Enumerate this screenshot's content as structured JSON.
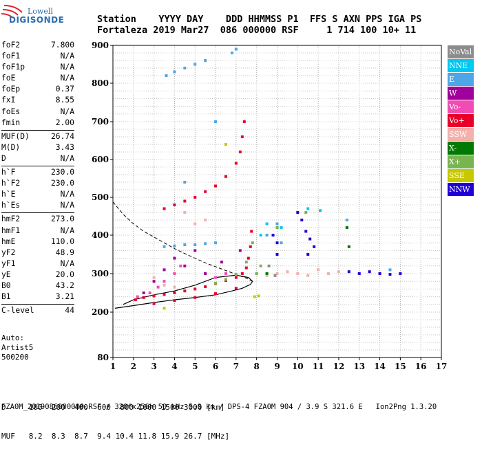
{
  "logo": {
    "line1": "Lowell",
    "line2": "DIGISONDE"
  },
  "header": {
    "row1": "Station    YYYY DAY    DDD HHMMSS P1  FFS S AXN PPS IGA PS",
    "row2": "Fortaleza 2019 Mar27  086 000000 RSF     1 714 100 10+ 11"
  },
  "params": {
    "group1": [
      {
        "label": "foF2",
        "value": "7.800"
      },
      {
        "label": "foF1",
        "value": "N/A"
      },
      {
        "label": "foF1p",
        "value": "N/A"
      },
      {
        "label": "foE",
        "value": "N/A"
      },
      {
        "label": "foEp",
        "value": "0.37"
      },
      {
        "label": "fxI",
        "value": "8.55"
      },
      {
        "label": "foEs",
        "value": "N/A"
      },
      {
        "label": "fmin",
        "value": "2.00"
      }
    ],
    "group2": [
      {
        "label": "MUF(D)",
        "value": "26.74"
      },
      {
        "label": "M(D)",
        "value": "3.43"
      },
      {
        "label": "D",
        "value": "N/A"
      }
    ],
    "group3": [
      {
        "label": "h`F",
        "value": "230.0"
      },
      {
        "label": "h`F2",
        "value": "230.0"
      },
      {
        "label": "h`E",
        "value": "N/A"
      },
      {
        "label": "h`Es",
        "value": "N/A"
      }
    ],
    "group4": [
      {
        "label": "hmF2",
        "value": "273.0"
      },
      {
        "label": "hmF1",
        "value": "N/A"
      },
      {
        "label": "hmE",
        "value": "110.0"
      },
      {
        "label": "yF2",
        "value": "48.9"
      },
      {
        "label": "yF1",
        "value": "N/A"
      },
      {
        "label": "yE",
        "value": "20.0"
      },
      {
        "label": "B0",
        "value": "43.2"
      },
      {
        "label": "B1",
        "value": "3.21"
      }
    ],
    "group5": [
      {
        "label": "C-level",
        "value": "44"
      }
    ]
  },
  "auto": {
    "line1": "Auto:",
    "line2": "Artist5",
    "line3": "500200"
  },
  "legend": [
    {
      "label": "NoVal",
      "color": "#8c8c8c"
    },
    {
      "label": "NNE",
      "color": "#00c8f0"
    },
    {
      "label": "E",
      "color": "#4ea6e6"
    },
    {
      "label": "W",
      "color": "#a0009c"
    },
    {
      "label": "Vo-",
      "color": "#f04cb4"
    },
    {
      "label": "Vo+",
      "color": "#e8002a"
    },
    {
      "label": "SSW",
      "color": "#f4b0ac"
    },
    {
      "label": "X-",
      "color": "#007a00"
    },
    {
      "label": "X+",
      "color": "#78b450"
    },
    {
      "label": "SSE",
      "color": "#c8c800"
    },
    {
      "label": "NNW",
      "color": "#2000d8"
    }
  ],
  "dtable": {
    "row1": "D     100  200  400  600  800 1000 1500 3000 [km]",
    "row2": "MUF   8.2  8.3  8.7  9.4 10.4 11.8 15.9 26.7 [MHz]"
  },
  "footer": "FZA0M_2019086000000.RSF / 320fx256h 50 kHz 5.0 km / DPS-4 FZA0M 904 / 3.9 S 321.6 E   Ion2Png 1.3.20",
  "chart_data": {
    "type": "scatter",
    "xlim": [
      1,
      17
    ],
    "ylim": [
      80,
      900
    ],
    "x_ticks": [
      "1",
      "2",
      "3",
      "4",
      "5",
      "6",
      "7",
      "8",
      "9",
      "10",
      "11",
      "12",
      "13",
      "14",
      "15",
      "16",
      "17"
    ],
    "y_ticks": [
      "80",
      "200",
      "300",
      "400",
      "500",
      "600",
      "700",
      "800",
      "900"
    ],
    "grid": true,
    "series": [
      {
        "name": "Vo+",
        "color": "#e8002a",
        "points": [
          [
            2.1,
            232
          ],
          [
            2.5,
            238
          ],
          [
            3,
            242
          ],
          [
            3.5,
            246
          ],
          [
            4,
            250
          ],
          [
            4.5,
            255
          ],
          [
            5,
            260
          ],
          [
            5.5,
            266
          ],
          [
            6,
            274
          ],
          [
            6.5,
            282
          ],
          [
            7,
            290
          ],
          [
            7.3,
            300
          ],
          [
            7.5,
            315
          ],
          [
            7.6,
            340
          ],
          [
            7.7,
            370
          ],
          [
            7.75,
            410
          ],
          [
            3.5,
            470
          ],
          [
            4,
            480
          ],
          [
            4.5,
            490
          ],
          [
            5,
            500
          ],
          [
            5.5,
            515
          ],
          [
            6,
            530
          ],
          [
            6.5,
            555
          ],
          [
            7,
            590
          ],
          [
            7.2,
            620
          ],
          [
            7.3,
            660
          ],
          [
            7.4,
            700
          ],
          [
            3,
            222
          ],
          [
            4,
            230
          ],
          [
            5,
            238
          ],
          [
            6,
            248
          ],
          [
            7,
            262
          ]
        ]
      },
      {
        "name": "Vo-",
        "color": "#f04cb4",
        "points": [
          [
            2.2,
            240
          ],
          [
            2.8,
            250
          ],
          [
            3.2,
            265
          ],
          [
            3.5,
            280
          ],
          [
            4,
            300
          ],
          [
            4.3,
            320
          ],
          [
            5.5,
            300
          ],
          [
            6,
            290
          ],
          [
            6.5,
            300
          ]
        ]
      },
      {
        "name": "W",
        "color": "#a0009c",
        "points": [
          [
            2.5,
            250
          ],
          [
            3,
            280
          ],
          [
            3.5,
            310
          ],
          [
            4,
            340
          ],
          [
            4.5,
            320
          ],
          [
            5,
            360
          ],
          [
            5.5,
            300
          ],
          [
            6.3,
            330
          ],
          [
            7.2,
            360
          ]
        ]
      },
      {
        "name": "SSW",
        "color": "#f4b0ac",
        "points": [
          [
            3,
            290
          ],
          [
            3.5,
            270
          ],
          [
            4,
            265
          ],
          [
            5,
            430
          ],
          [
            5.5,
            440
          ],
          [
            8,
            300
          ],
          [
            8.5,
            295
          ],
          [
            9,
            300
          ],
          [
            9.5,
            305
          ],
          [
            10,
            300
          ],
          [
            10.5,
            295
          ],
          [
            11,
            310
          ],
          [
            11.5,
            300
          ],
          [
            12,
            305
          ],
          [
            4.5,
            460
          ]
        ]
      },
      {
        "name": "X+",
        "color": "#78b450",
        "points": [
          [
            6,
            275
          ],
          [
            6.5,
            285
          ],
          [
            7,
            298
          ],
          [
            7.5,
            330
          ],
          [
            7.8,
            380
          ],
          [
            8,
            300
          ],
          [
            8.2,
            320
          ],
          [
            9,
            420
          ],
          [
            10.4,
            460
          ]
        ]
      },
      {
        "name": "X-",
        "color": "#007a00",
        "points": [
          [
            8.5,
            300
          ],
          [
            12.5,
            370
          ],
          [
            12.4,
            420
          ]
        ]
      },
      {
        "name": "E",
        "color": "#4ea6e6",
        "points": [
          [
            3.5,
            370
          ],
          [
            4,
            372
          ],
          [
            4.5,
            375
          ],
          [
            5,
            375
          ],
          [
            5.5,
            378
          ],
          [
            6,
            380
          ],
          [
            3.6,
            820
          ],
          [
            4,
            830
          ],
          [
            4.5,
            840
          ],
          [
            5,
            850
          ],
          [
            5.5,
            860
          ],
          [
            6.8,
            880
          ],
          [
            7,
            890
          ],
          [
            6,
            700
          ],
          [
            4.5,
            540
          ],
          [
            8.5,
            400
          ],
          [
            9,
            430
          ],
          [
            9.2,
            380
          ],
          [
            12.4,
            440
          ],
          [
            14.5,
            310
          ]
        ]
      },
      {
        "name": "NNE",
        "color": "#00c8f0",
        "points": [
          [
            8.5,
            430
          ],
          [
            8.2,
            400
          ],
          [
            9.2,
            420
          ],
          [
            10.5,
            470
          ],
          [
            11.1,
            465
          ]
        ]
      },
      {
        "name": "NNW",
        "color": "#2000d8",
        "points": [
          [
            8.8,
            400
          ],
          [
            9,
            380
          ],
          [
            9,
            350
          ],
          [
            10,
            460
          ],
          [
            10.2,
            440
          ],
          [
            10.4,
            410
          ],
          [
            10.6,
            390
          ],
          [
            10.8,
            370
          ],
          [
            10.5,
            350
          ],
          [
            12.5,
            305
          ],
          [
            13,
            300
          ],
          [
            13.5,
            305
          ],
          [
            14,
            300
          ],
          [
            14.5,
            298
          ],
          [
            15,
            300
          ]
        ]
      },
      {
        "name": "SSE",
        "color": "#c8c800",
        "points": [
          [
            7.9,
            240
          ],
          [
            8.1,
            242
          ],
          [
            3.5,
            210
          ],
          [
            6.5,
            640
          ]
        ]
      },
      {
        "name": "NoVal",
        "color": "#8c8c8c",
        "points": [
          [
            8.9,
            295
          ],
          [
            8.6,
            320
          ]
        ]
      }
    ],
    "black_curve": [
      [
        1.1,
        210
      ],
      [
        2,
        217
      ],
      [
        3,
        225
      ],
      [
        4,
        232
      ],
      [
        5,
        238
      ],
      [
        6,
        245
      ],
      [
        6.8,
        255
      ],
      [
        7.3,
        262
      ],
      [
        7.7,
        272
      ],
      [
        7.8,
        280
      ],
      [
        7.6,
        290
      ],
      [
        7,
        296
      ],
      [
        6,
        290
      ],
      [
        5,
        270
      ],
      [
        4,
        255
      ],
      [
        3,
        245
      ],
      [
        2,
        232
      ],
      [
        1.5,
        220
      ]
    ],
    "dashed_curve": [
      [
        1,
        488
      ],
      [
        1.5,
        455
      ],
      [
        2,
        430
      ],
      [
        2.5,
        410
      ],
      [
        3,
        395
      ],
      [
        3.5,
        380
      ],
      [
        4,
        365
      ],
      [
        4.5,
        352
      ],
      [
        5,
        340
      ],
      [
        5.5,
        328
      ],
      [
        6,
        318
      ],
      [
        6.5,
        308
      ],
      [
        7,
        298
      ],
      [
        7.5,
        288
      ],
      [
        7.8,
        280
      ]
    ]
  }
}
